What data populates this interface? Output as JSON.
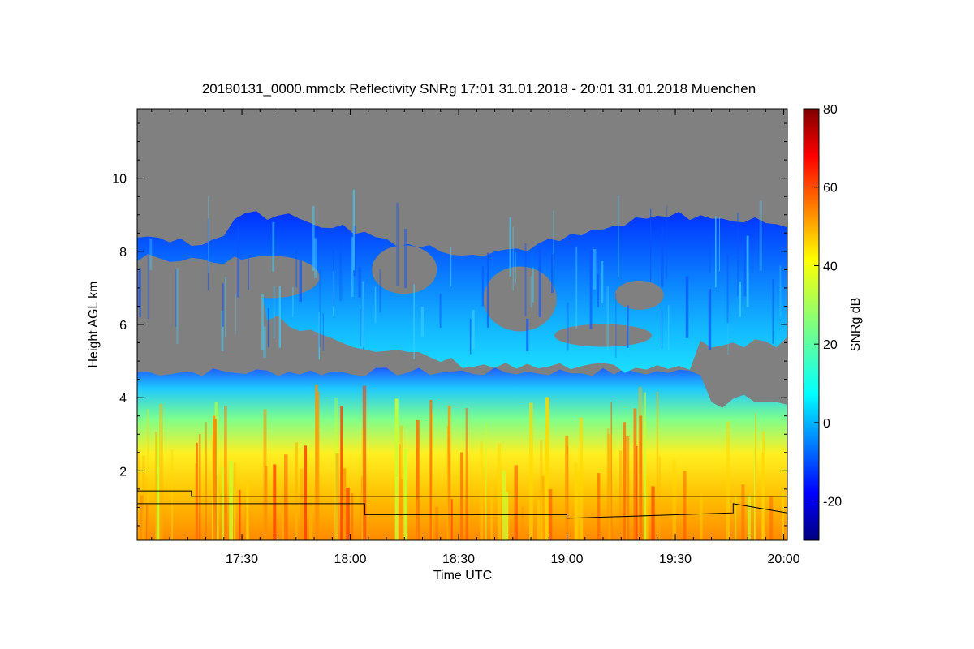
{
  "chart_data": {
    "type": "heatmap",
    "title": "20180131_0000.mmclx Reflectivity SNRg   17:01 31.01.2018 - 20:01 31.01.2018 Muenchen",
    "xlabel": "Time UTC",
    "ylabel": "Height AGL km",
    "colorbar_label": "SNRg dB",
    "x_range": [
      "17:01",
      "20:01"
    ],
    "y_range": [
      0.1,
      11.9
    ],
    "color_range": [
      -30,
      80
    ],
    "x_ticks": [
      "17:30",
      "18:00",
      "18:30",
      "19:00",
      "19:30",
      "20:00"
    ],
    "y_ticks": [
      2,
      4,
      6,
      8,
      10
    ],
    "colorbar_ticks": [
      -20,
      0,
      20,
      40,
      60,
      80
    ],
    "colormap": "jet",
    "background_color": "#808080",
    "layers": [
      {
        "name": "lower precipitation layer",
        "time_start": "17:01",
        "time_end": "20:01",
        "base_km": 0.1,
        "top_km": 4.8,
        "snr_db_core": 38,
        "snr_db_edge": 5
      },
      {
        "name": "upper cloud layer",
        "time_start": "17:01",
        "time_end": "20:01",
        "base_km": 4.6,
        "top_km": 9.1,
        "snr_db_core": 8,
        "snr_db_edge": -20
      }
    ],
    "overlay_lines": [
      {
        "name": "upper black line",
        "x": [
          "17:01",
          "17:16",
          "17:16",
          "20:01"
        ],
        "y": [
          1.45,
          1.45,
          1.3,
          1.3
        ]
      },
      {
        "name": "lower black line",
        "x": [
          "17:01",
          "18:04",
          "18:04",
          "19:00",
          "19:00",
          "19:46",
          "19:46",
          "20:01"
        ],
        "y": [
          1.1,
          1.1,
          0.8,
          0.8,
          0.7,
          0.85,
          1.1,
          0.85
        ]
      }
    ]
  }
}
